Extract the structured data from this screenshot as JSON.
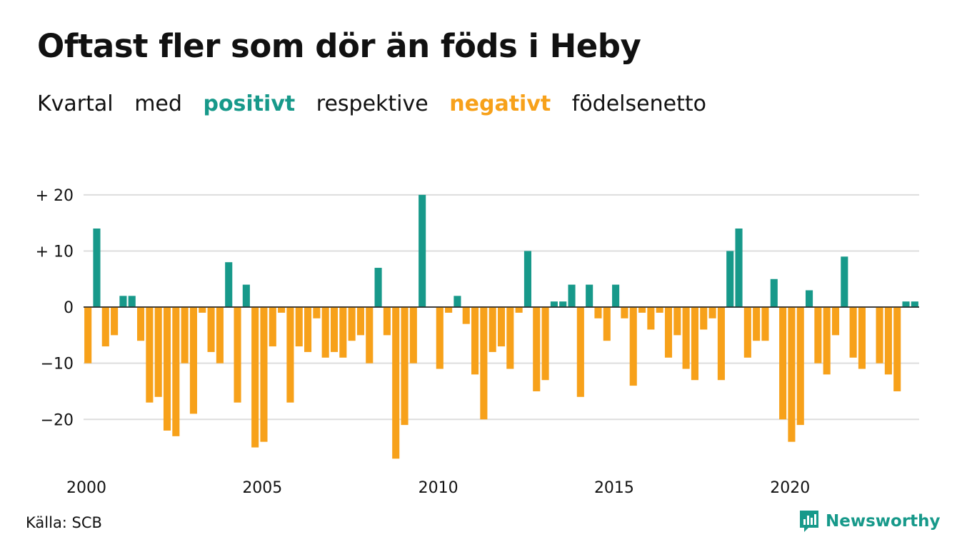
{
  "header": {
    "title": "Oftast fler som dör än föds i Heby",
    "subtitle": {
      "part1": "Kvartal",
      "part2": "med",
      "positive": "positivt",
      "part3": "respektive",
      "negative": "negativt",
      "part4": "födelsenetto"
    }
  },
  "footer": {
    "source": "Källa: SCB",
    "brand": "Newsworthy",
    "brand_icon": "newsworthy-logo-icon"
  },
  "colors": {
    "positive": "#17998a",
    "negative": "#f7a11a",
    "grid": "#dddddd",
    "text": "#111111"
  },
  "chart_data": {
    "type": "bar",
    "title": "Oftast fler som dör än föds i Heby",
    "subtitle": "Kvartal med positivt respektive negativt födelsenetto",
    "xlabel": "",
    "ylabel": "",
    "ylim": [
      -29,
      21
    ],
    "yticks": [
      20,
      10,
      0,
      -10,
      -20
    ],
    "ytick_labels": [
      "+ 20",
      "+ 10",
      "0",
      "−10",
      "−20"
    ],
    "x_tick_labels": [
      "2000",
      "2005",
      "2010",
      "2015",
      "2020"
    ],
    "grid": true,
    "start_year": 2000,
    "start_quarter": 1,
    "values": [
      -10,
      14,
      -7,
      -5,
      2,
      2,
      -6,
      -17,
      -16,
      -22,
      -23,
      -10,
      -19,
      -1,
      -8,
      -10,
      8,
      -17,
      4,
      -25,
      -24,
      -7,
      -1,
      -17,
      -7,
      -8,
      -2,
      -9,
      -8,
      -9,
      -6,
      -5,
      -10,
      7,
      -5,
      -27,
      -21,
      -10,
      20,
      0,
      -11,
      -1,
      2,
      -3,
      -12,
      -20,
      -8,
      -7,
      -11,
      -1,
      10,
      -15,
      -13,
      1,
      1,
      4,
      -16,
      4,
      -2,
      -6,
      4,
      -2,
      -14,
      -1,
      -4,
      -1,
      -9,
      -5,
      -11,
      -13,
      -4,
      -2,
      -13,
      10,
      14,
      -9,
      -6,
      -6,
      5,
      -20,
      -24,
      -21,
      3,
      -10,
      -12,
      -5,
      9,
      -9,
      -11,
      0,
      -10,
      -12,
      -15,
      1,
      1
    ]
  }
}
